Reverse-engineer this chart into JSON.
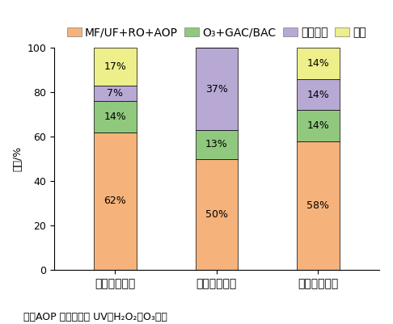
{
  "categories": [
    "间接饮用回用",
    "直接饮用回用",
    "全部回用方式"
  ],
  "series": [
    {
      "label": "MF/UF+RO+AOP",
      "values": [
        62,
        50,
        58
      ],
      "color": "#F5B27A"
    },
    {
      "label": "O₃+GAC/BAC",
      "values": [
        14,
        13,
        14
      ],
      "color": "#90C97E"
    },
    {
      "label": "混合工艺",
      "values": [
        7,
        37,
        14
      ],
      "color": "#B8A8D4"
    },
    {
      "label": "其他",
      "values": [
        17,
        0,
        14
      ],
      "color": "#EDEF8A"
    }
  ],
  "ylabel": "占比/%",
  "ylim": [
    0,
    100
  ],
  "yticks": [
    0,
    20,
    40,
    60,
    80,
    100
  ],
  "note": "注：AOP 主要包括如 UV、H₂O₂、O₃等；",
  "bar_width": 0.42,
  "legend_fontsize": 8.5,
  "tick_fontsize": 9,
  "label_fontsize": 9,
  "note_fontsize": 9
}
